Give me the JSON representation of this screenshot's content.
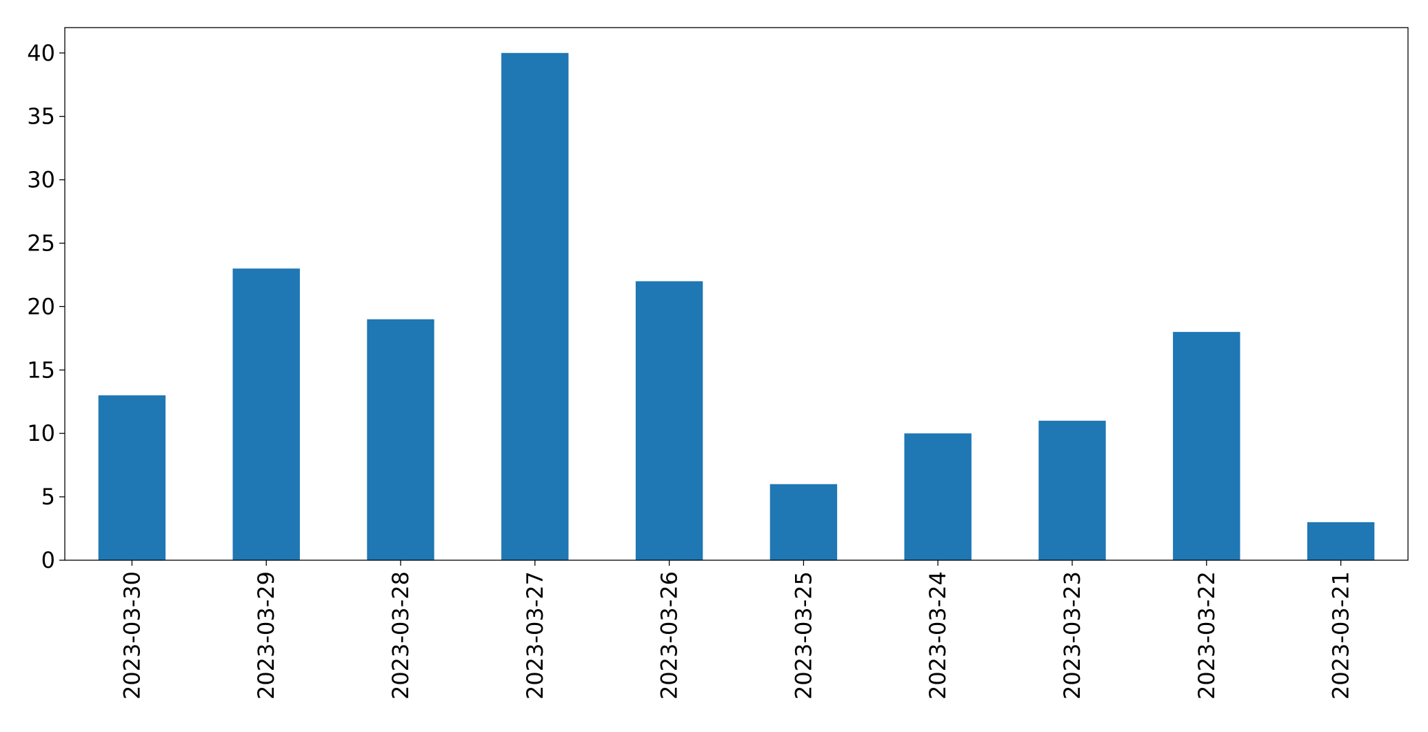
{
  "chart_data": {
    "type": "bar",
    "categories": [
      "2023-03-30",
      "2023-03-29",
      "2023-03-28",
      "2023-03-27",
      "2023-03-26",
      "2023-03-25",
      "2023-03-24",
      "2023-03-23",
      "2023-03-22",
      "2023-03-21"
    ],
    "values": [
      13,
      23,
      19,
      40,
      22,
      6,
      10,
      11,
      18,
      3
    ],
    "color": "#1f77b4",
    "ylim": [
      0,
      42
    ],
    "yticks": [
      0,
      5,
      10,
      15,
      20,
      25,
      30,
      35,
      40
    ],
    "grid": false
  }
}
